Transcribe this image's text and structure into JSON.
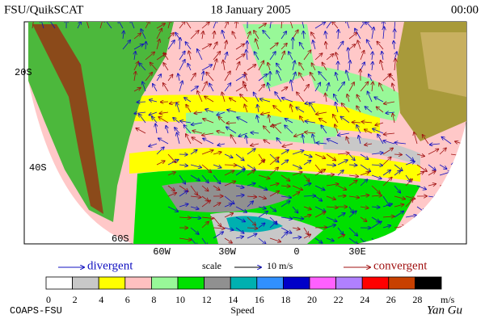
{
  "header": {
    "source": "FSU/QuikSCAT",
    "date": "18 January 2005",
    "time": "00:00"
  },
  "map": {
    "latitude_labels": [
      "20S",
      "40S",
      "60S"
    ],
    "longitude_labels": [
      "60W",
      "30W",
      "0",
      "30E"
    ]
  },
  "legend": {
    "divergent": "divergent",
    "scale": "scale",
    "scale_value": "10 m/s",
    "convergent": "convergent"
  },
  "colorbar": {
    "ticks": [
      0,
      2,
      4,
      6,
      8,
      10,
      12,
      14,
      16,
      18,
      20,
      22,
      24,
      26,
      28
    ],
    "unit": "m/s",
    "title": "Speed"
  },
  "footer": {
    "credit": "COAPS-FSU",
    "author": "Yan Gu"
  }
}
